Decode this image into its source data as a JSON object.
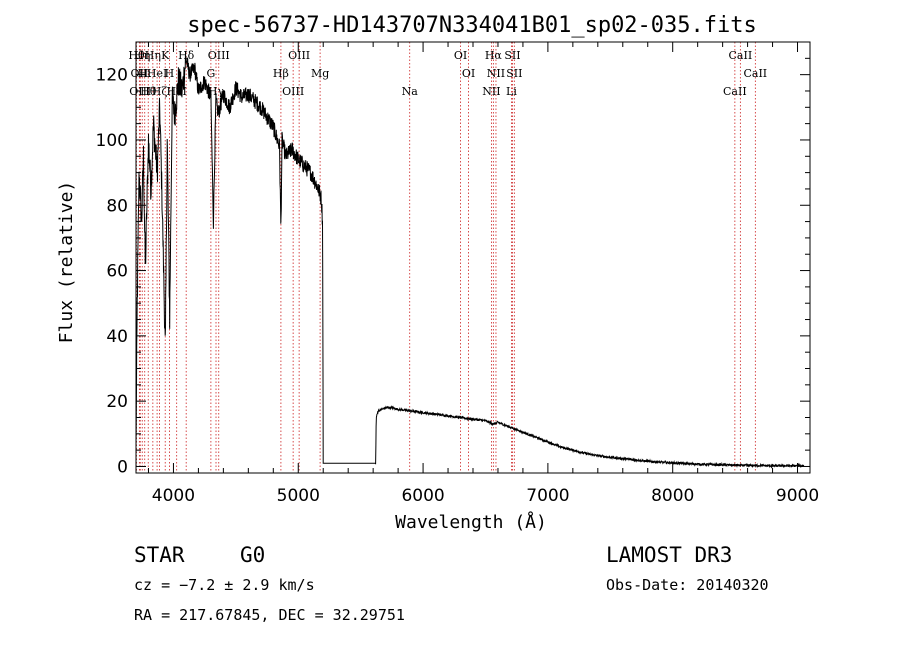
{
  "chart_data": {
    "type": "line",
    "title": "spec-56737-HD143707N334041B01_sp02-035.fits",
    "xlabel": "Wavelength (Å)",
    "ylabel": "Flux (relative)",
    "xlim": [
      3700,
      9100
    ],
    "ylim": [
      -2,
      130
    ],
    "xticks": [
      4000,
      5000,
      6000,
      7000,
      8000,
      9000
    ],
    "yticks": [
      0,
      20,
      40,
      60,
      80,
      100,
      120
    ],
    "spectrum_anchors": {
      "x": [
        3700,
        3710,
        3725,
        3745,
        3760,
        3775,
        3800,
        3820,
        3840,
        3870,
        3890,
        3910,
        3935,
        3950,
        3970,
        3990,
        4010,
        4040,
        4070,
        4100,
        4130,
        4170,
        4200,
        4250,
        4300,
        4320,
        4340,
        4360,
        4400,
        4450,
        4500,
        4550,
        4600,
        4650,
        4700,
        4750,
        4800,
        4850,
        4861,
        4870,
        4900,
        4950,
        5000,
        5050,
        5100,
        5150,
        5170,
        5185,
        5195,
        5200,
        5205,
        5230,
        5300,
        5400,
        5500,
        5600,
        5620,
        5625,
        5640,
        5700,
        5750,
        5800,
        5900,
        6000,
        6100,
        6200,
        6300,
        6400,
        6500,
        6563,
        6600,
        6700,
        6800,
        6900,
        7000,
        7100,
        7200,
        7300,
        7400,
        7500,
        7600,
        7700,
        7800,
        7900,
        8000,
        8100,
        8200,
        8300,
        8400,
        8500,
        8600,
        8700,
        8800,
        8900,
        9000,
        9050
      ],
      "y": [
        5,
        50,
        90,
        75,
        95,
        60,
        100,
        85,
        105,
        90,
        110,
        80,
        35,
        100,
        45,
        112,
        108,
        118,
        115,
        125,
        120,
        122,
        115,
        118,
        113,
        75,
        112,
        108,
        114,
        110,
        116,
        113,
        114,
        112,
        110,
        107,
        104,
        98,
        72,
        100,
        95,
        97,
        94,
        92,
        90,
        86,
        84,
        82,
        75,
        1,
        1,
        1,
        1,
        1,
        1,
        1,
        1,
        15,
        17,
        18,
        18,
        17.5,
        17,
        16.5,
        16,
        15.5,
        15,
        14.5,
        14,
        13,
        13.5,
        12,
        10.5,
        9,
        7.5,
        6,
        5,
        4,
        3.3,
        2.8,
        2.4,
        2,
        1.6,
        1.3,
        1.1,
        0.9,
        0.7,
        0.6,
        0.5,
        0.4,
        0.3,
        0.3,
        0.2,
        0.2,
        0.2,
        0.3
      ]
    },
    "spectral_lines": [
      {
        "w": 3704,
        "label": "Hθ"
      },
      {
        "w": 3727,
        "label": "OII"
      },
      {
        "w": 3734,
        "label": "OIII"
      },
      {
        "w": 3750,
        "label": "Hη"
      },
      {
        "w": 3770,
        "label": "Hι"
      },
      {
        "w": 3798,
        "label": "Hθ"
      },
      {
        "w": 3835,
        "label": "Hη"
      },
      {
        "w": 3869,
        "label": "HeI"
      },
      {
        "w": 3889,
        "label": "Hζ"
      },
      {
        "w": 3934,
        "label": "K"
      },
      {
        "w": 3968,
        "label": "H"
      },
      {
        "w": 4026,
        "label": "HeI"
      },
      {
        "w": 4102,
        "label": "Hδ"
      },
      {
        "w": 4300,
        "label": "G"
      },
      {
        "w": 4341,
        "label": "Hγ"
      },
      {
        "w": 4363,
        "label": "OIII"
      },
      {
        "w": 4861,
        "label": "Hβ"
      },
      {
        "w": 4959,
        "label": "OIII"
      },
      {
        "w": 5007,
        "label": "OIII"
      },
      {
        "w": 5175,
        "label": "Mg"
      },
      {
        "w": 5893,
        "label": "Na"
      },
      {
        "w": 6300,
        "label": "OI"
      },
      {
        "w": 6364,
        "label": "OI"
      },
      {
        "w": 6548,
        "label": "NII"
      },
      {
        "w": 6563,
        "label": "Hα"
      },
      {
        "w": 6584,
        "label": "NII"
      },
      {
        "w": 6708,
        "label": "Li"
      },
      {
        "w": 6716,
        "label": "SII"
      },
      {
        "w": 6731,
        "label": "SII"
      },
      {
        "w": 8498,
        "label": "CaII"
      },
      {
        "w": 8542,
        "label": "CaII"
      },
      {
        "w": 8662,
        "label": "CaII"
      }
    ]
  },
  "info": {
    "object_type": "STAR",
    "subclass": "G0",
    "survey": "LAMOST DR3",
    "cz": "cz = −7.2 ± 2.9 km/s",
    "obs_date": "Obs-Date: 20140320",
    "coords": "RA = 217.67845, DEC =  32.29751"
  },
  "colors": {
    "spectrum": "#000000",
    "line_markers": "#cc2222",
    "axes": "#000000",
    "background": "#ffffff"
  }
}
